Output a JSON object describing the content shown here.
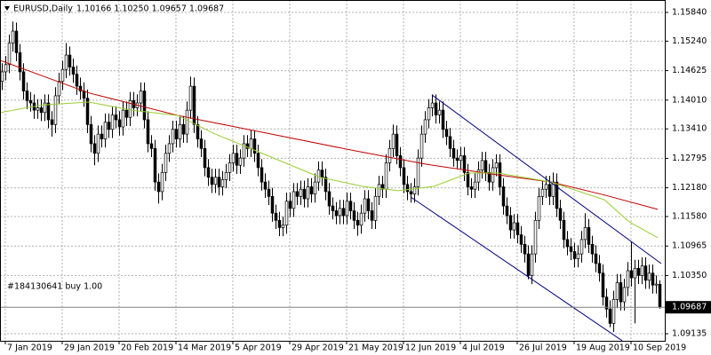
{
  "chart_data": {
    "type": "candlestick",
    "title": "EURUSD,Daily",
    "header_quote": "1.10166 1.10250 1.09657 1.09687",
    "annotation": "#184130641 buy 1.00",
    "up_color": "#ffffff",
    "down_color": "#000000",
    "grid": true,
    "xlim": [
      0,
      187
    ],
    "ylim": [
      1.08987,
      1.16099
    ],
    "xticks": [
      {
        "value": 1,
        "label": "7 Jan 2019"
      },
      {
        "value": 17,
        "label": "29 Jan 2019"
      },
      {
        "value": 33,
        "label": "20 Feb 2019"
      },
      {
        "value": 49,
        "label": "14 Mar 2019"
      },
      {
        "value": 65,
        "label": "5 Apr 2019"
      },
      {
        "value": 81,
        "label": "29 Apr 2019"
      },
      {
        "value": 97,
        "label": "21 May 2019"
      },
      {
        "value": 113,
        "label": "12 Jun 2019"
      },
      {
        "value": 129,
        "label": "4 Jul 2019"
      },
      {
        "value": 145,
        "label": "26 Jul 2019"
      },
      {
        "value": 161,
        "label": "19 Aug 2019"
      },
      {
        "value": 177,
        "label": "10 Sep 2019"
      }
    ],
    "yticks": [
      {
        "value": 1.1584,
        "label": "1.15840"
      },
      {
        "value": 1.1524,
        "label": "1.15240"
      },
      1.14625,
      {
        "value": 1.1401,
        "label": "1.14010"
      },
      {
        "value": 1.1341,
        "label": "1.13410"
      },
      1.12795,
      {
        "value": 1.1218,
        "label": "1.12180"
      },
      {
        "value": 1.1158,
        "label": "1.11580"
      },
      1.10965,
      {
        "value": 1.1035,
        "label": "1.10350"
      },
      1.09135
    ],
    "open": [
      1.144,
      1.146,
      1.1475,
      1.152,
      1.1545,
      1.15,
      1.146,
      1.142,
      1.14,
      1.1395,
      1.138,
      1.1385,
      1.1375,
      1.1395,
      1.136,
      1.135,
      1.141,
      1.144,
      1.1465,
      1.1495,
      1.147,
      1.1455,
      1.143,
      1.142,
      1.1405,
      1.135,
      1.131,
      1.129,
      1.133,
      1.132,
      1.1355,
      1.134,
      1.137,
      1.136,
      1.1345,
      1.138,
      1.1365,
      1.14,
      1.1385,
      1.1395,
      1.142,
      1.136,
      1.131,
      1.13,
      1.123,
      1.121,
      1.125,
      1.129,
      1.131,
      1.134,
      1.132,
      1.135,
      1.133,
      1.138,
      1.143,
      1.135,
      1.132,
      1.13,
      1.126,
      1.124,
      1.1225,
      1.124,
      1.122,
      1.1235,
      1.125,
      1.127,
      1.129,
      1.1265,
      1.128,
      1.131,
      1.13,
      1.132,
      1.129,
      1.126,
      1.123,
      1.1215,
      1.12,
      1.1165,
      1.115,
      1.1135,
      1.114,
      1.119,
      1.1175,
      1.121,
      1.12,
      1.1215,
      1.1195,
      1.122,
      1.1205,
      1.123,
      1.1255,
      1.124,
      1.121,
      1.118,
      1.117,
      1.116,
      1.1175,
      1.116,
      1.119,
      1.117,
      1.115,
      1.114,
      1.1165,
      1.1195,
      1.117,
      1.115,
      1.12,
      1.1225,
      1.1215,
      1.127,
      1.13,
      1.133,
      1.1285,
      1.126,
      1.1225,
      1.121,
      1.1205,
      1.122,
      1.128,
      1.133,
      1.136,
      1.1385,
      1.1395,
      1.137,
      1.138,
      1.134,
      1.1325,
      1.13,
      1.128,
      1.1275,
      1.1285,
      1.125,
      1.122,
      1.1215,
      1.123,
      1.1255,
      1.1275,
      1.125,
      1.123,
      1.126,
      1.127,
      1.122,
      1.118,
      1.116,
      1.113,
      1.1145,
      1.112,
      1.11,
      1.108,
      1.1035,
      1.108,
      1.115,
      1.12,
      1.1215,
      1.1225,
      1.12,
      1.123,
      1.1175,
      1.115,
      1.111,
      1.1095,
      1.1085,
      1.107,
      1.108,
      1.111,
      1.1135,
      1.11,
      1.108,
      1.106,
      1.104,
      1.099,
      1.0965,
      1.0935,
      1.0985,
      1.102,
      1.098,
      1.101,
      1.1045,
      1.103,
      1.105,
      1.1035,
      1.1055,
      1.1025,
      1.104,
      1.1015,
      1.10166
    ],
    "high": [
      1.1478,
      1.1493,
      1.1538,
      1.1565,
      1.1563,
      1.1518,
      1.1478,
      1.1438,
      1.1418,
      1.1413,
      1.1403,
      1.1403,
      1.1413,
      1.1413,
      1.1378,
      1.1428,
      1.1458,
      1.1483,
      1.152,
      1.1513,
      1.1488,
      1.1473,
      1.1448,
      1.1438,
      1.1423,
      1.1368,
      1.1328,
      1.1348,
      1.1348,
      1.1373,
      1.1373,
      1.1388,
      1.1388,
      1.1378,
      1.1398,
      1.1398,
      1.1418,
      1.1418,
      1.1413,
      1.1438,
      1.1438,
      1.1378,
      1.1328,
      1.1318,
      1.1248,
      1.1268,
      1.1308,
      1.1328,
      1.1358,
      1.1358,
      1.1368,
      1.1368,
      1.1398,
      1.145,
      1.1448,
      1.1368,
      1.1338,
      1.1318,
      1.1278,
      1.1258,
      1.1258,
      1.1258,
      1.1253,
      1.1268,
      1.1288,
      1.1308,
      1.1308,
      1.1298,
      1.1328,
      1.1328,
      1.1338,
      1.1338,
      1.1308,
      1.1278,
      1.1248,
      1.1233,
      1.1218,
      1.1183,
      1.1168,
      1.1158,
      1.1208,
      1.1208,
      1.1228,
      1.1228,
      1.1233,
      1.1233,
      1.1238,
      1.1238,
      1.1248,
      1.1273,
      1.1273,
      1.1258,
      1.1228,
      1.1198,
      1.1188,
      1.1193,
      1.1193,
      1.1208,
      1.1208,
      1.1188,
      1.1168,
      1.1183,
      1.1213,
      1.1213,
      1.1188,
      1.1218,
      1.1243,
      1.1243,
      1.1288,
      1.1318,
      1.135,
      1.1348,
      1.1303,
      1.1278,
      1.1243,
      1.1228,
      1.1238,
      1.1298,
      1.1348,
      1.1378,
      1.1403,
      1.1413,
      1.1413,
      1.1398,
      1.1398,
      1.1358,
      1.1343,
      1.1318,
      1.1298,
      1.1303,
      1.1303,
      1.1268,
      1.1238,
      1.1248,
      1.1273,
      1.1293,
      1.1293,
      1.1268,
      1.1278,
      1.1288,
      1.1288,
      1.1238,
      1.1198,
      1.1178,
      1.1163,
      1.1163,
      1.1138,
      1.1118,
      1.1098,
      1.1098,
      1.1168,
      1.1218,
      1.1233,
      1.1243,
      1.1243,
      1.125,
      1.1248,
      1.1193,
      1.1168,
      1.1128,
      1.1113,
      1.1103,
      1.1098,
      1.1128,
      1.1165,
      1.1153,
      1.1118,
      1.1098,
      1.1078,
      1.1058,
      1.1008,
      1.0983,
      1.1003,
      1.1038,
      1.1038,
      1.1028,
      1.1063,
      1.1105,
      1.1068,
      1.1068,
      1.1073,
      1.1073,
      1.1058,
      1.1058,
      1.1035,
      1.1025
    ],
    "low": [
      1.1422,
      1.1442,
      1.1457,
      1.1502,
      1.1482,
      1.1442,
      1.1402,
      1.1382,
      1.1377,
      1.1362,
      1.1362,
      1.1357,
      1.1357,
      1.1342,
      1.1325,
      1.1332,
      1.1392,
      1.1422,
      1.1447,
      1.1452,
      1.1437,
      1.1412,
      1.1402,
      1.1387,
      1.1332,
      1.1292,
      1.1265,
      1.1272,
      1.1302,
      1.1302,
      1.1322,
      1.1322,
      1.1342,
      1.1327,
      1.1327,
      1.1347,
      1.1347,
      1.1367,
      1.1367,
      1.1377,
      1.1342,
      1.1292,
      1.1282,
      1.1212,
      1.1185,
      1.1192,
      1.1232,
      1.1272,
      1.1292,
      1.1302,
      1.1302,
      1.1312,
      1.1312,
      1.1362,
      1.1332,
      1.1302,
      1.1282,
      1.1242,
      1.1222,
      1.1207,
      1.1207,
      1.1202,
      1.1202,
      1.1217,
      1.1232,
      1.1252,
      1.1247,
      1.1247,
      1.1262,
      1.1282,
      1.1282,
      1.1272,
      1.1242,
      1.1212,
      1.1197,
      1.1182,
      1.1147,
      1.1132,
      1.1117,
      1.1117,
      1.1122,
      1.1157,
      1.1157,
      1.1182,
      1.1182,
      1.1177,
      1.1177,
      1.1187,
      1.1187,
      1.1212,
      1.1222,
      1.1192,
      1.1162,
      1.1152,
      1.1142,
      1.1142,
      1.1142,
      1.1142,
      1.1152,
      1.1132,
      1.1118,
      1.1122,
      1.1147,
      1.1152,
      1.1132,
      1.1132,
      1.1182,
      1.1197,
      1.1197,
      1.1252,
      1.1282,
      1.1267,
      1.1242,
      1.1207,
      1.1192,
      1.1187,
      1.1187,
      1.1202,
      1.1262,
      1.1312,
      1.1342,
      1.1367,
      1.1352,
      1.1352,
      1.1322,
      1.1307,
      1.1282,
      1.1262,
      1.1257,
      1.1257,
      1.1232,
      1.1202,
      1.1197,
      1.1197,
      1.1212,
      1.1237,
      1.1232,
      1.1212,
      1.1212,
      1.1242,
      1.1202,
      1.1162,
      1.1142,
      1.1112,
      1.1112,
      1.1102,
      1.1082,
      1.1062,
      1.1027,
      1.1017,
      1.1062,
      1.1132,
      1.1182,
      1.1197,
      1.1182,
      1.1182,
      1.1157,
      1.1132,
      1.1092,
      1.1077,
      1.1067,
      1.1052,
      1.1052,
      1.1062,
      1.1092,
      1.1082,
      1.1062,
      1.1042,
      1.1022,
      1.0972,
      1.0947,
      1.0927,
      1.0917,
      1.0967,
      1.0962,
      1.0962,
      1.0992,
      1.1012,
      1.0935,
      1.1017,
      1.1017,
      1.1007,
      1.1007,
      1.0997,
      1.0997,
      1.09657
    ],
    "close": [
      1.146,
      1.1475,
      1.152,
      1.1545,
      1.15,
      1.146,
      1.142,
      1.14,
      1.1395,
      1.138,
      1.1385,
      1.1375,
      1.1395,
      1.136,
      1.135,
      1.141,
      1.144,
      1.1465,
      1.1495,
      1.147,
      1.1455,
      1.143,
      1.142,
      1.1405,
      1.135,
      1.131,
      1.129,
      1.133,
      1.132,
      1.1355,
      1.134,
      1.137,
      1.136,
      1.1345,
      1.138,
      1.1365,
      1.14,
      1.1385,
      1.1395,
      1.142,
      1.136,
      1.131,
      1.13,
      1.123,
      1.121,
      1.125,
      1.129,
      1.131,
      1.134,
      1.132,
      1.135,
      1.133,
      1.138,
      1.143,
      1.135,
      1.132,
      1.13,
      1.126,
      1.124,
      1.1225,
      1.124,
      1.122,
      1.1235,
      1.125,
      1.127,
      1.129,
      1.1265,
      1.128,
      1.131,
      1.13,
      1.132,
      1.129,
      1.126,
      1.123,
      1.1215,
      1.12,
      1.1165,
      1.115,
      1.1135,
      1.114,
      1.119,
      1.1175,
      1.121,
      1.12,
      1.1215,
      1.1195,
      1.122,
      1.1205,
      1.123,
      1.1255,
      1.124,
      1.121,
      1.118,
      1.117,
      1.116,
      1.1175,
      1.116,
      1.119,
      1.117,
      1.115,
      1.114,
      1.1165,
      1.1195,
      1.117,
      1.115,
      1.12,
      1.1225,
      1.1215,
      1.127,
      1.13,
      1.133,
      1.1285,
      1.126,
      1.1225,
      1.121,
      1.1205,
      1.122,
      1.128,
      1.133,
      1.136,
      1.1385,
      1.1395,
      1.137,
      1.138,
      1.134,
      1.1325,
      1.13,
      1.128,
      1.1275,
      1.1285,
      1.125,
      1.122,
      1.1215,
      1.123,
      1.1255,
      1.1275,
      1.125,
      1.123,
      1.126,
      1.127,
      1.122,
      1.118,
      1.116,
      1.113,
      1.1145,
      1.112,
      1.11,
      1.108,
      1.1035,
      1.108,
      1.115,
      1.12,
      1.1215,
      1.1225,
      1.12,
      1.123,
      1.1175,
      1.115,
      1.111,
      1.1095,
      1.1085,
      1.107,
      1.108,
      1.111,
      1.1135,
      1.11,
      1.108,
      1.106,
      1.104,
      1.099,
      1.0965,
      1.0935,
      1.0985,
      1.102,
      1.098,
      1.101,
      1.1045,
      1.103,
      1.105,
      1.1035,
      1.1055,
      1.1025,
      1.104,
      1.1015,
      1.1017,
      1.09687
    ],
    "series": [
      {
        "color": "#c00000",
        "x": [
          0,
          25,
          50,
          75,
          100,
          120,
          140,
          155,
          170,
          185
        ],
        "values": [
          1.1484,
          1.1416,
          1.1369,
          1.1332,
          1.1295,
          1.1267,
          1.1245,
          1.123,
          1.1203,
          1.1173
        ]
      },
      {
        "color": "#9acd32",
        "x": [
          0,
          12,
          25,
          37,
          50,
          60,
          75,
          90,
          102,
          112,
          122,
          132,
          140,
          155,
          170,
          177,
          185
        ],
        "values": [
          1.1375,
          1.1391,
          1.1397,
          1.138,
          1.1369,
          1.1332,
          1.1286,
          1.124,
          1.1221,
          1.1212,
          1.1221,
          1.1249,
          1.1249,
          1.123,
          1.1193,
          1.1147,
          1.1114
        ]
      }
    ],
    "trendlines": [
      {
        "color": "#000080",
        "x": [
          121.5,
          186
        ],
        "values": [
          1.14118,
          1.10598
        ]
      },
      {
        "color": "#000080",
        "x": [
          115.5,
          175
        ],
        "values": [
          1.1199,
          1.0899
        ]
      }
    ]
  }
}
